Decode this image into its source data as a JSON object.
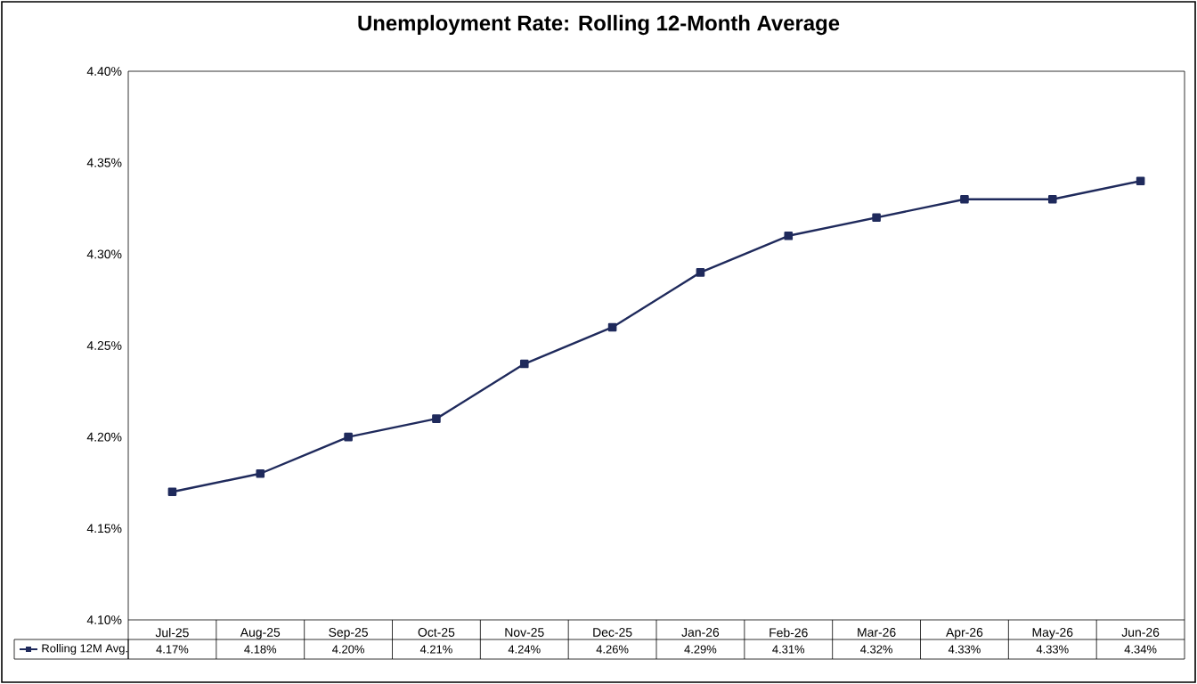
{
  "chart_data": {
    "type": "line",
    "title": "Unemployment Rate: Rolling  12-Month Average",
    "categories": [
      "Jul-25",
      "Aug-25",
      "Sep-25",
      "Oct-25",
      "Nov-25",
      "Dec-25",
      "Jan-26",
      "Feb-26",
      "Mar-26",
      "Apr-26",
      "May-26",
      "Jun-26"
    ],
    "series": [
      {
        "name": "Rolling 12M Avg.",
        "color": "#1f2a5c",
        "values": [
          4.17,
          4.18,
          4.2,
          4.21,
          4.24,
          4.26,
          4.29,
          4.31,
          4.32,
          4.33,
          4.33,
          4.34
        ],
        "value_labels": [
          "4.17%",
          "4.18%",
          "4.20%",
          "4.21%",
          "4.24%",
          "4.26%",
          "4.29%",
          "4.31%",
          "4.32%",
          "4.33%",
          "4.33%",
          "4.34%"
        ]
      }
    ],
    "ylim": [
      4.1,
      4.4
    ],
    "yticks": [
      {
        "value": 4.1,
        "label": "4.10%"
      },
      {
        "value": 4.15,
        "label": "4.15%"
      },
      {
        "value": 4.2,
        "label": "4.20%"
      },
      {
        "value": 4.25,
        "label": "4.25%"
      },
      {
        "value": 4.3,
        "label": "4.30%"
      },
      {
        "value": 4.35,
        "label": "4.35%"
      },
      {
        "value": 4.4,
        "label": "4.40%"
      }
    ],
    "marker": "square",
    "line_style": "solid",
    "legend": "bottom"
  }
}
